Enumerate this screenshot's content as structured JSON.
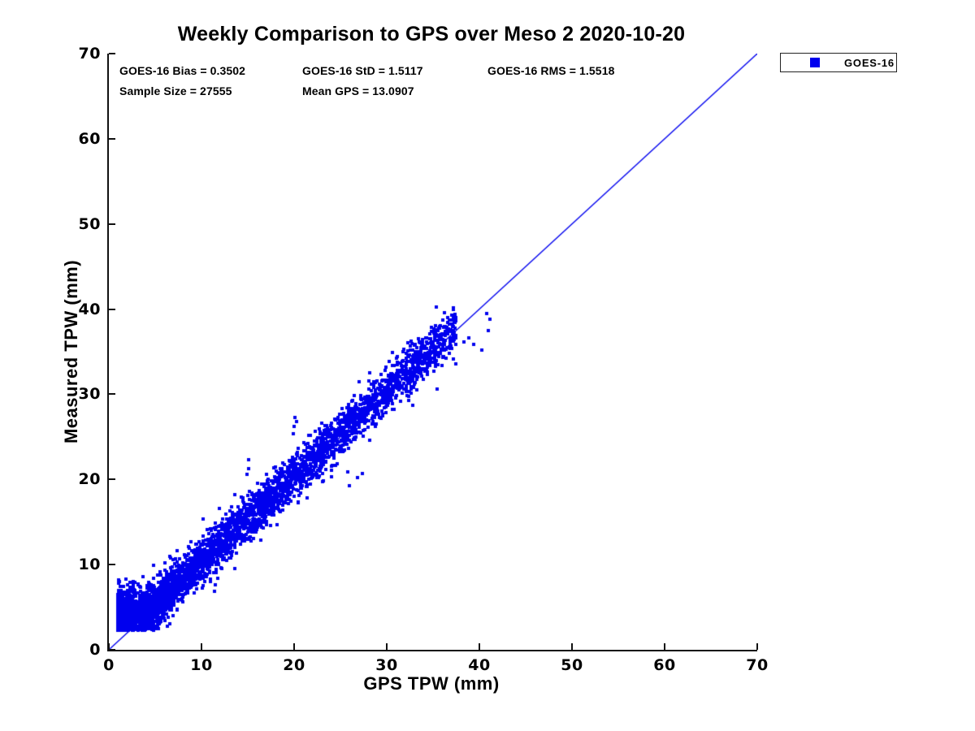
{
  "page": {
    "background": "#ffffff"
  },
  "stats": {
    "bias": "GOES-16 Bias = 0.3502",
    "std": "GOES-16 StD = 1.5117",
    "rms": "GOES-16 RMS = 1.5518",
    "sample_size": "Sample Size = 27555",
    "mean_gps": "Mean GPS = 13.0907"
  },
  "chart_data": {
    "type": "scatter",
    "title": "Weekly Comparison to GPS over Meso 2 2020-10-20",
    "xlabel": "GPS TPW (mm)",
    "ylabel": "Measured TPW (mm)",
    "xlim": [
      0,
      70
    ],
    "ylim": [
      0,
      70
    ],
    "xticks": [
      0,
      10,
      20,
      30,
      40,
      50,
      60,
      70
    ],
    "yticks": [
      0,
      10,
      20,
      30,
      40,
      50,
      60,
      70
    ],
    "grid": false,
    "axis_color": "#111111",
    "legend": {
      "position": "outside-top-right",
      "entries": [
        {
          "label": "GOES-16",
          "marker": "square",
          "color": "#0000EE"
        }
      ]
    },
    "stats_values": {
      "bias": 0.3502,
      "std": 1.5117,
      "rms": 1.5518,
      "sample_size": 27555,
      "mean_gps": 13.0907
    },
    "reference_line": {
      "kind": "identity",
      "x0": 0,
      "y0": 0,
      "x1": 70,
      "y1": 70,
      "color": "#0000EE",
      "width": 1.3
    },
    "series": [
      {
        "name": "GOES-16",
        "marker": "square",
        "marker_px": 4,
        "color": "#0000EE",
        "x_range_observed": [
          1.0,
          41.1
        ],
        "y_range_observed": [
          2.3,
          40.1
        ],
        "render_model": {
          "seed": 1337,
          "count": 4500,
          "x_min": 1.0,
          "x_span": 36.5,
          "x_power": 2.0,
          "bias": 0.35,
          "noise_std": 1.35,
          "y_floor": 2.25,
          "low_x_lift_below": 4.2,
          "low_x_lift_gain": 0.85,
          "outliers": [
            [
              15.05,
              21.3
            ],
            [
              15.1,
              22.3
            ],
            [
              14.9,
              20.6
            ],
            [
              13.6,
              18.2
            ],
            [
              20.0,
              26.2
            ],
            [
              20.1,
              27.3
            ],
            [
              19.9,
              25.4
            ],
            [
              20.3,
              26.8
            ],
            [
              11.4,
              6.9
            ],
            [
              11.5,
              7.6
            ],
            [
              23.2,
              19.8
            ],
            [
              24.0,
              20.3
            ],
            [
              26.0,
              19.3
            ],
            [
              26.8,
              20.2
            ],
            [
              27.4,
              20.7
            ],
            [
              25.8,
              20.9
            ],
            [
              33.0,
              35.8
            ],
            [
              33.5,
              36.1
            ],
            [
              34.9,
              37.4
            ],
            [
              35.6,
              37.8
            ],
            [
              36.3,
              38.0
            ],
            [
              37.2,
              40.0
            ],
            [
              37.3,
              38.6
            ],
            [
              36.8,
              35.4
            ],
            [
              38.3,
              36.1
            ],
            [
              38.9,
              36.6
            ],
            [
              39.4,
              35.9
            ],
            [
              40.3,
              35.2
            ],
            [
              40.8,
              39.5
            ],
            [
              41.0,
              37.5
            ],
            [
              41.1,
              38.8
            ],
            [
              35.2,
              33.9
            ]
          ]
        }
      }
    ]
  }
}
